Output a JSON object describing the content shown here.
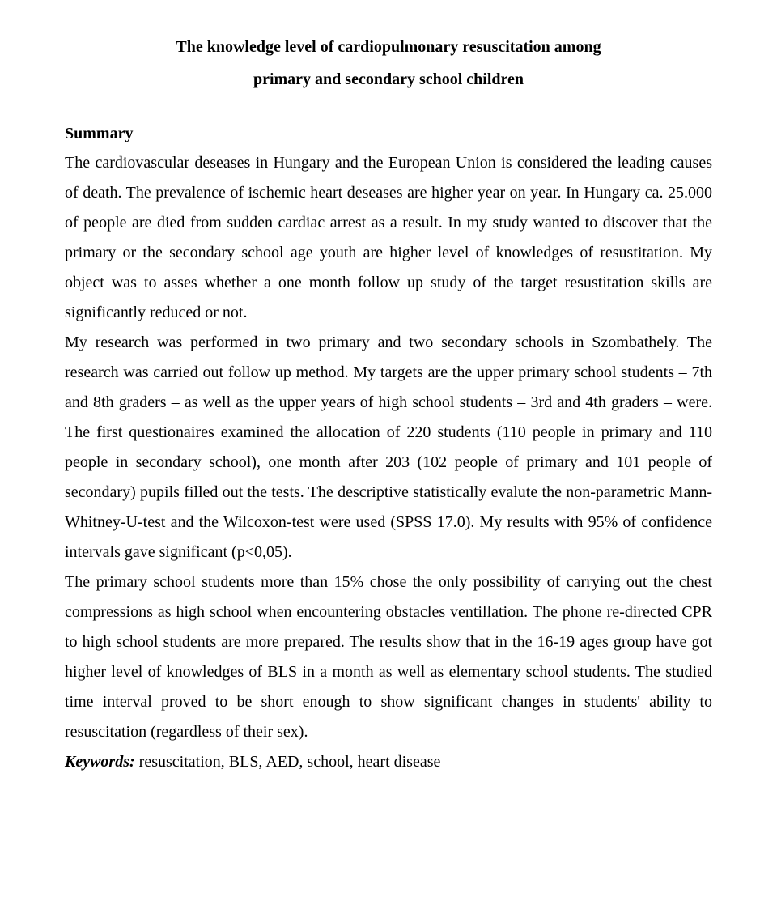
{
  "title_line1": "The knowledge level of cardiopulmonary resuscitation among",
  "title_line2": "primary and secondary school children",
  "summary_heading": "Summary",
  "para1": "The cardiovascular deseases in Hungary and the European Union is considered the leading causes of death. The prevalence of ischemic heart deseases are higher year on year. In Hungary ca. 25.000 of people are died from sudden cardiac arrest as a result. In my study wanted to discover that the primary or the secondary school age youth are higher level of knowledges of resustitation. My object was to asses whether a one month follow up study of the target resustitation skills are significantly reduced or not.",
  "para2": "My research was performed in two primary and two secondary schools in Szombathely. The research was carried out follow up method. My targets are the upper primary school students – 7th and 8th graders – as well as the upper years of high school students – 3rd and 4th graders – were. The first questionaires examined the allocation of 220 students (110 people in primary and 110 people in secondary school), one month after 203 (102 people of primary and 101 people of secondary) pupils filled out the tests. The descriptive statistically evalute the non-parametric Mann-Whitney-U-test and the Wilcoxon-test were used (SPSS 17.0). My results with 95% of confidence intervals gave significant (p<0,05).",
  "para3": "The primary school students more than 15% chose the only possibility of carrying out the chest compressions as high school when encountering obstacles ventillation. The phone re-directed CPR to high school students are more prepared. The results show that in the 16-19 ages group have got higher level of knowledges of BLS in a month as well as elementary school students. The studied time interval proved to be short enough to show significant changes in students' ability to resuscitation (regardless of their sex).",
  "keywords_label": "Keywords:",
  "keywords_text": " resuscitation, BLS, AED, school, heart disease"
}
